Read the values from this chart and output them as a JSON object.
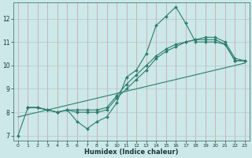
{
  "title": "",
  "xlabel": "Humidex (Indice chaleur)",
  "bg_color": "#cce8e8",
  "line_color": "#2e7d6e",
  "xlim": [
    -0.5,
    23.5
  ],
  "ylim": [
    6.8,
    12.7
  ],
  "yticks": [
    7,
    8,
    9,
    10,
    11,
    12
  ],
  "xticks": [
    0,
    1,
    2,
    3,
    4,
    5,
    6,
    7,
    8,
    9,
    10,
    11,
    12,
    13,
    14,
    15,
    16,
    17,
    18,
    19,
    20,
    21,
    22,
    23
  ],
  "line1_x": [
    0,
    1,
    2,
    3,
    4,
    5,
    6,
    7,
    8,
    9,
    10,
    11,
    12,
    13,
    14,
    15,
    16,
    17,
    18,
    19,
    20,
    21,
    22,
    23
  ],
  "line1_y": [
    7.0,
    8.2,
    8.2,
    8.1,
    8.0,
    8.1,
    7.6,
    7.3,
    7.6,
    7.8,
    8.4,
    9.5,
    9.8,
    10.5,
    11.7,
    12.1,
    12.5,
    11.8,
    11.0,
    11.0,
    11.0,
    10.9,
    10.2,
    10.2
  ],
  "line2_x": [
    1,
    2,
    3,
    4,
    5,
    6,
    7,
    8,
    9,
    10,
    11,
    12,
    13,
    14,
    15,
    16,
    17,
    18,
    19,
    20,
    21,
    22,
    23
  ],
  "line2_y": [
    8.2,
    8.2,
    8.1,
    8.0,
    8.1,
    8.1,
    8.1,
    8.1,
    8.2,
    8.7,
    9.2,
    9.6,
    10.0,
    10.4,
    10.7,
    10.9,
    11.0,
    11.1,
    11.1,
    11.1,
    10.9,
    10.2,
    10.2
  ],
  "line3_x": [
    0,
    23
  ],
  "line3_y": [
    7.8,
    10.1
  ],
  "line4_x": [
    1,
    2,
    3,
    4,
    5,
    6,
    7,
    8,
    9,
    10,
    11,
    12,
    13,
    14,
    15,
    16,
    17,
    18,
    19,
    20,
    21,
    22,
    23
  ],
  "line4_y": [
    8.2,
    8.2,
    8.1,
    8.0,
    8.1,
    8.0,
    8.0,
    8.0,
    8.1,
    8.6,
    9.0,
    9.4,
    9.8,
    10.3,
    10.6,
    10.8,
    11.0,
    11.1,
    11.2,
    11.2,
    11.0,
    10.3,
    10.2
  ],
  "vgrid_color": "#c8a0a0",
  "hgrid_color": "#b8c8c8",
  "marker": "D",
  "marker_size": 2.0,
  "lw": 0.8
}
